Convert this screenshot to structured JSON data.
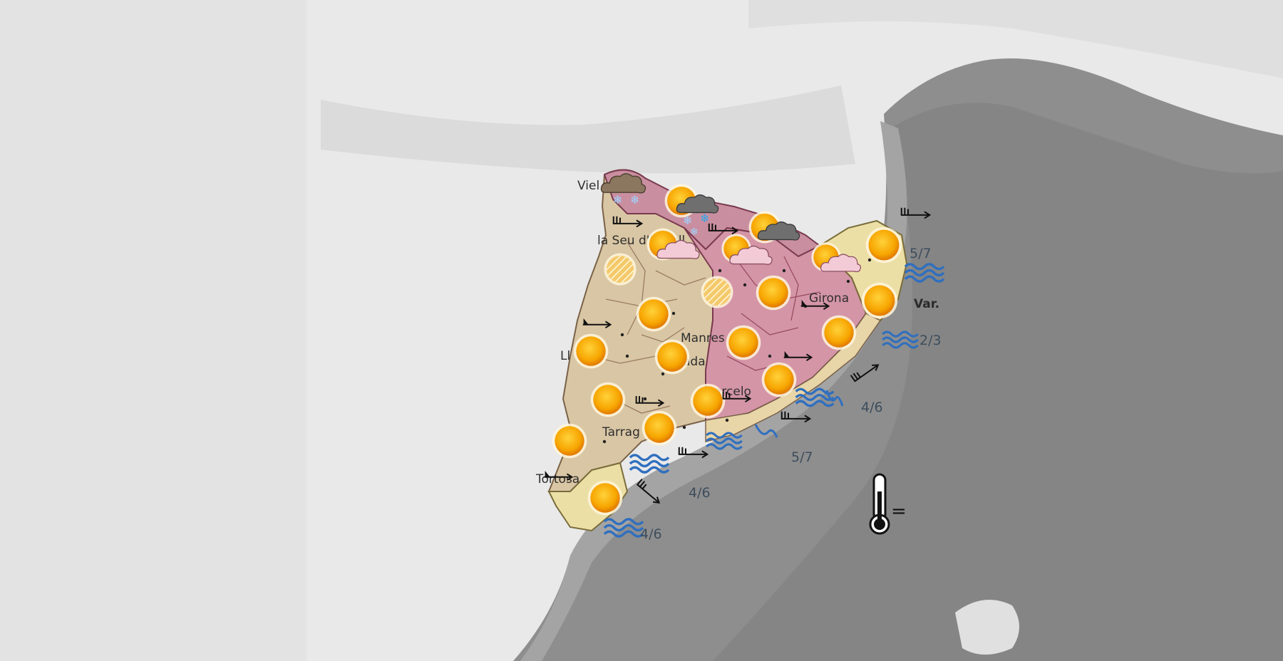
{
  "map": {
    "cities": [
      {
        "key": "vielha",
        "label": "Viel"
      },
      {
        "key": "seu",
        "label": "la Seu d'Urgell"
      },
      {
        "key": "lleida",
        "label": "Ll"
      },
      {
        "key": "manresa",
        "label": "Manres"
      },
      {
        "key": "igualada",
        "label": "ada"
      },
      {
        "key": "girona",
        "label": "Girona"
      },
      {
        "key": "barcelona",
        "label": "arcelo"
      },
      {
        "key": "tarragona",
        "label": "Tarrag"
      },
      {
        "key": "tortosa",
        "label": "Tortosa"
      }
    ],
    "sea_state": [
      {
        "key": "costa-brava-north",
        "value": "5/7"
      },
      {
        "key": "costa-brava-south",
        "value": "2/3"
      },
      {
        "key": "maresme",
        "value": "4/6"
      },
      {
        "key": "barcelona-coast",
        "value": "5/7"
      },
      {
        "key": "tarragona-coast",
        "value": "4/6"
      },
      {
        "key": "ebre-coast",
        "value": "4/6"
      }
    ],
    "variable_wind_label": "Var.",
    "temperature_trend": "=",
    "colors": {
      "sea": "#8d8d8d",
      "land": "#dcdcdc",
      "region_beige": "#d9c6a4",
      "region_pink": "#d495a7",
      "region_yellow": "#ecdfa6",
      "sun": "#f7a500",
      "waves": "#2f6fbf"
    }
  }
}
